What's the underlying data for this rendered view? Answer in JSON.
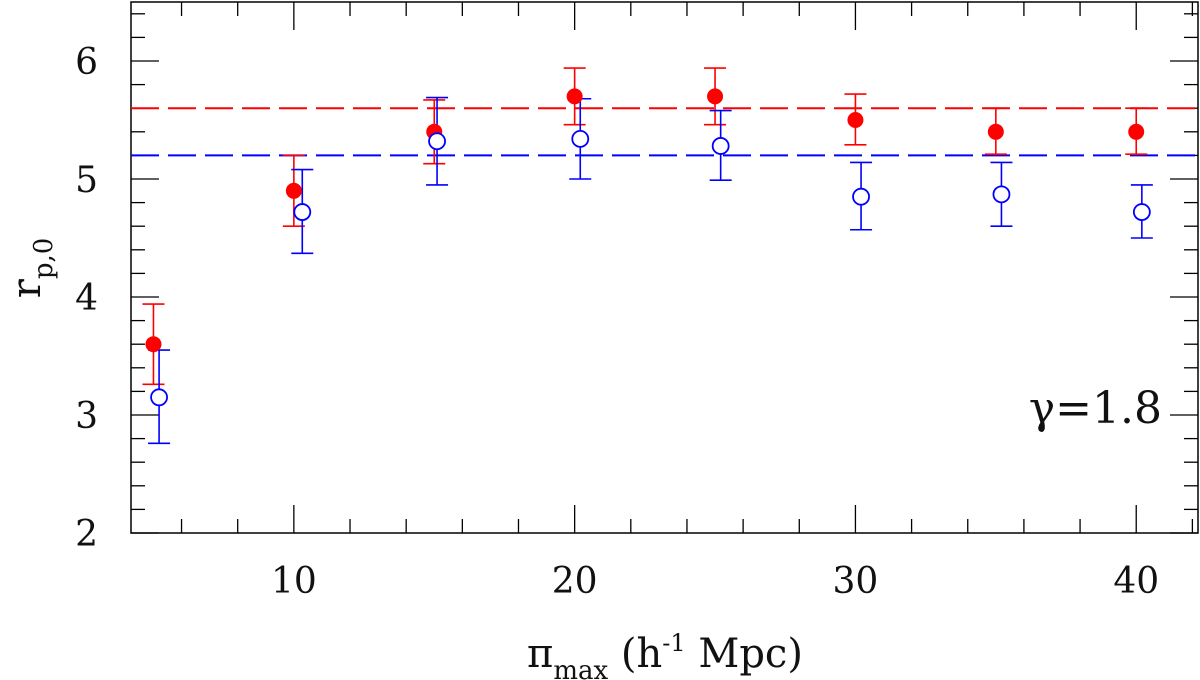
{
  "chart_data": {
    "type": "scatter",
    "xlabel": {
      "symbol": "π",
      "subscript": "max",
      "unit_prefix": "(h",
      "superscript": "-1",
      "unit_suffix": " Mpc)"
    },
    "ylabel": {
      "base": "r",
      "subscript": "p,0"
    },
    "annotation": "γ=1.8",
    "xlim": [
      4.2,
      42.2
    ],
    "ylim": [
      2,
      6.5
    ],
    "x_ticks": [
      10,
      20,
      30,
      40
    ],
    "x_tick_labels": [
      "10",
      "20",
      "30",
      "40"
    ],
    "y_ticks": [
      2,
      3,
      4,
      5,
      6
    ],
    "y_tick_labels": [
      "2",
      "3",
      "4",
      "5",
      "6"
    ],
    "series": [
      {
        "name": "filled",
        "color": "#ff0000",
        "marker": "filled-circle",
        "x": [
          5,
          10,
          15,
          20,
          25,
          30,
          35,
          40
        ],
        "y": [
          3.6,
          4.9,
          5.4,
          5.7,
          5.7,
          5.5,
          5.4,
          5.4
        ],
        "err_low": [
          3.26,
          4.6,
          5.13,
          5.46,
          5.46,
          5.29,
          5.21,
          5.21
        ],
        "err_high": [
          3.94,
          5.2,
          5.67,
          5.94,
          5.94,
          5.72,
          5.6,
          5.6
        ],
        "reference_line": 5.6
      },
      {
        "name": "open",
        "color": "#0000ff",
        "marker": "open-circle",
        "x": [
          5.2,
          10.3,
          15.1,
          20.2,
          25.2,
          30.2,
          35.2,
          40.2
        ],
        "y": [
          3.15,
          4.72,
          5.32,
          5.34,
          5.28,
          4.85,
          4.87,
          4.72
        ],
        "err_low": [
          2.76,
          4.37,
          4.95,
          5.0,
          4.99,
          4.57,
          4.6,
          4.5
        ],
        "err_high": [
          3.55,
          5.08,
          5.69,
          5.68,
          5.58,
          5.14,
          5.14,
          4.95
        ],
        "reference_line": 5.2
      }
    ]
  }
}
